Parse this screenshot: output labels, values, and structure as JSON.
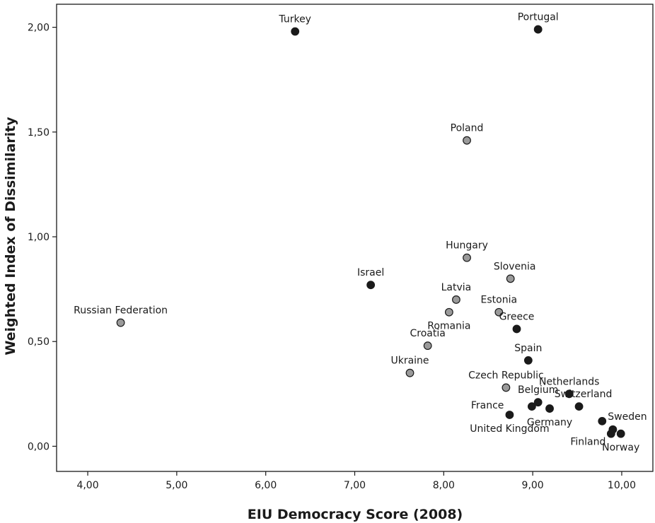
{
  "chart_data": {
    "type": "scatter",
    "title": "",
    "xlabel": "EIU Democracy Score (2008)",
    "ylabel": "Weighted Index of Dissimilarity",
    "xlim": [
      3.65,
      10.35
    ],
    "ylim": [
      -0.12,
      2.11
    ],
    "x_ticks": [
      4,
      5,
      6,
      7,
      8,
      9,
      10
    ],
    "x_tick_labels": [
      "4,00",
      "5,00",
      "6,00",
      "7,00",
      "8,00",
      "9,00",
      "10,00"
    ],
    "y_ticks": [
      0,
      0.5,
      1,
      1.5,
      2
    ],
    "y_tick_labels": [
      "0,00",
      "0,50",
      "1,00",
      "1,50",
      "2,00"
    ],
    "grid": false,
    "colors": {
      "black_marker": "#1a1a1a",
      "gray_marker": "#9a9a9a",
      "outline": "#1a1a1a"
    },
    "points": [
      {
        "label": "Turkey",
        "x": 6.33,
        "y": 1.98,
        "color": "black",
        "label_pos": "above"
      },
      {
        "label": "Portugal",
        "x": 9.06,
        "y": 1.99,
        "color": "black",
        "label_pos": "above"
      },
      {
        "label": "Poland",
        "x": 8.26,
        "y": 1.46,
        "color": "gray",
        "label_pos": "above"
      },
      {
        "label": "Hungary",
        "x": 8.26,
        "y": 0.9,
        "color": "gray",
        "label_pos": "above"
      },
      {
        "label": "Slovenia",
        "x": 8.75,
        "y": 0.8,
        "color": "gray",
        "label_pos": "above-right"
      },
      {
        "label": "Israel",
        "x": 7.18,
        "y": 0.77,
        "color": "black",
        "label_pos": "above"
      },
      {
        "label": "Latvia",
        "x": 8.14,
        "y": 0.7,
        "color": "gray",
        "label_pos": "above"
      },
      {
        "label": "Estonia",
        "x": 8.62,
        "y": 0.64,
        "color": "gray",
        "label_pos": "above"
      },
      {
        "label": "Romania",
        "x": 8.06,
        "y": 0.64,
        "color": "gray",
        "label_pos": "below"
      },
      {
        "label": "Russian Federation",
        "x": 4.37,
        "y": 0.59,
        "color": "gray",
        "label_pos": "above"
      },
      {
        "label": "Greece",
        "x": 8.82,
        "y": 0.56,
        "color": "black",
        "label_pos": "above"
      },
      {
        "label": "Croatia",
        "x": 7.82,
        "y": 0.48,
        "color": "gray",
        "label_pos": "above"
      },
      {
        "label": "Spain",
        "x": 8.95,
        "y": 0.41,
        "color": "black",
        "label_pos": "above"
      },
      {
        "label": "Ukraine",
        "x": 7.62,
        "y": 0.35,
        "color": "gray",
        "label_pos": "above"
      },
      {
        "label": "Czech Republic",
        "x": 8.7,
        "y": 0.28,
        "color": "gray",
        "label_pos": "above"
      },
      {
        "label": "Netherlands",
        "x": 9.41,
        "y": 0.25,
        "color": "black",
        "label_pos": "above"
      },
      {
        "label": "Switzerland",
        "x": 9.52,
        "y": 0.19,
        "color": "black",
        "label_pos": "above-right"
      },
      {
        "label": "Belgium",
        "x": 9.06,
        "y": 0.21,
        "color": "black",
        "label_pos": "above"
      },
      {
        "label": "",
        "x": 9.19,
        "y": 0.18,
        "color": "black",
        "label_pos": "none"
      },
      {
        "label": "France",
        "x": 8.74,
        "y": 0.15,
        "color": "black",
        "label_pos": "above-left"
      },
      {
        "label": "",
        "x": 8.99,
        "y": 0.19,
        "color": "black",
        "label_pos": "none"
      },
      {
        "label": "United Kingdom",
        "x": 8.74,
        "y": 0.15,
        "color": "black",
        "label_pos": "below"
      },
      {
        "label": "Germany",
        "x": 9.19,
        "y": 0.18,
        "color": "black",
        "label_pos": "below"
      },
      {
        "label": "Sweden",
        "x": 9.78,
        "y": 0.12,
        "color": "black",
        "label_pos": "right"
      },
      {
        "label": "Finland",
        "x": 9.9,
        "y": 0.08,
        "color": "black",
        "label_pos": "below-left"
      },
      {
        "label": "Norway",
        "x": 9.99,
        "y": 0.06,
        "color": "black",
        "label_pos": "below"
      },
      {
        "label": "",
        "x": 9.88,
        "y": 0.06,
        "color": "black",
        "label_pos": "none"
      }
    ]
  }
}
